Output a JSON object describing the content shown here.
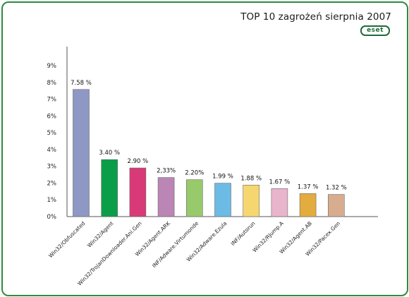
{
  "header": {
    "title": "TOP 10 zagrożeń sierpnia 2007",
    "logo_text": "eset"
  },
  "colors": {
    "border": "#2e8b3d",
    "logo": "#1f6b3a",
    "axis": "#555555"
  },
  "chart_data": {
    "type": "bar",
    "title": "TOP 10 zagrożeń sierpnia 2007",
    "xlabel": "",
    "ylabel": "",
    "ylim": [
      0,
      9
    ],
    "yticks": [
      0,
      1,
      2,
      3,
      4,
      5,
      6,
      7,
      8,
      9
    ],
    "ytick_labels": [
      "0%",
      "1%",
      "2%",
      "3%",
      "4%",
      "5%",
      "6%",
      "7%",
      "8%",
      "9%"
    ],
    "grid": false,
    "legend": "none",
    "categories": [
      "Win32/Obfuscated",
      "Win32/Agent",
      "Win32/TrojanDownloader.Ani.Gen",
      "Win32/Agent.ARK",
      "INF/Adware.Virtumonde",
      "Win32/Adware.Ezula",
      "INF/Autorun",
      "Win32/RJump.A",
      "Win32/Agent.AB",
      "Win32/Pacex.Gen"
    ],
    "values": [
      7.58,
      3.4,
      2.9,
      2.33,
      2.2,
      1.99,
      1.88,
      1.67,
      1.37,
      1.32
    ],
    "value_labels": [
      "7.58 %",
      "3.40 %",
      "2.90 %",
      "2,33%",
      "2.20%",
      "1.99 %",
      "1.88 %",
      "1.67 %",
      "1.37 %",
      "1.32 %"
    ],
    "bar_colors": [
      "#8e98c4",
      "#0b9e48",
      "#d83a78",
      "#bb85b5",
      "#98c96a",
      "#6bbbe5",
      "#f6d66f",
      "#e9b5cc",
      "#e3ac3e",
      "#d8ac8e"
    ]
  }
}
